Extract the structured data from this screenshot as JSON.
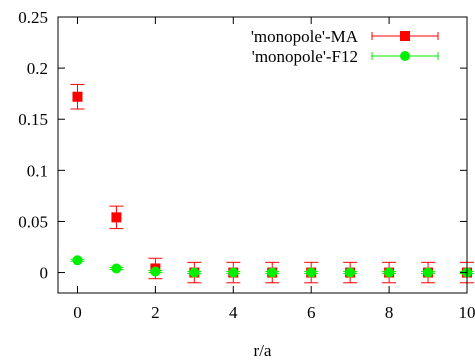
{
  "chart_data": {
    "type": "scatter",
    "title": "",
    "xlabel": "r/a",
    "ylabel": "",
    "xlim": [
      -0.5,
      10
    ],
    "ylim": [
      -0.02,
      0.25
    ],
    "xticks": [
      0,
      2,
      4,
      6,
      8,
      10
    ],
    "yticks": [
      0,
      0.05,
      0.1,
      0.15,
      0.2,
      0.25
    ],
    "xtick_labels": [
      "0",
      "2",
      "4",
      "6",
      "8",
      "10"
    ],
    "ytick_labels": [
      "0",
      "0.05",
      "0.1",
      "0.15",
      "0.2",
      "0.25"
    ],
    "grid": false,
    "legend_position": "top-right",
    "series": [
      {
        "name": "'monopole'-MA",
        "color": "#ff0000",
        "marker": "square",
        "x": [
          0,
          1,
          2,
          3,
          4,
          5,
          6,
          7,
          8,
          9,
          10
        ],
        "y": [
          0.172,
          0.054,
          0.004,
          0,
          0,
          0,
          0,
          0,
          0,
          0,
          0
        ],
        "yerr": [
          0.012,
          0.011,
          0.01,
          0.01,
          0.01,
          0.01,
          0.01,
          0.01,
          0.01,
          0.01,
          0.01
        ]
      },
      {
        "name": "'monopole'-F12",
        "color": "#00ee00",
        "marker": "circle",
        "x": [
          0,
          1,
          2,
          3,
          4,
          5,
          6,
          7,
          8,
          9,
          10
        ],
        "y": [
          0.012,
          0.004,
          0.001,
          0,
          0,
          0,
          0,
          0,
          0,
          0,
          0
        ],
        "yerr": [
          0.001,
          0.001,
          0.001,
          0.001,
          0.001,
          0.001,
          0.001,
          0.001,
          0.001,
          0.001,
          0.001
        ]
      }
    ]
  }
}
